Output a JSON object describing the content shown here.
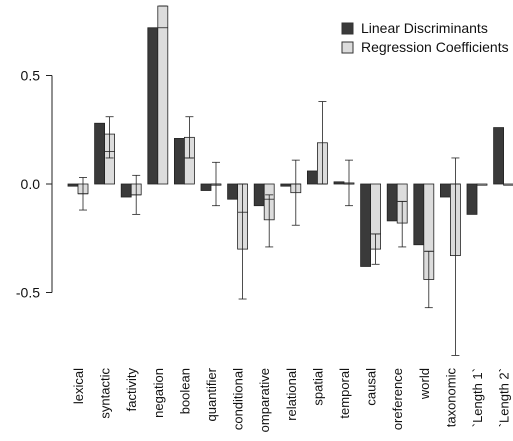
{
  "chart_data": {
    "type": "bar",
    "title": "",
    "xlabel": "",
    "ylabel": "",
    "ylim": [
      -0.82,
      0.82
    ],
    "yticks": [
      0.5,
      0.0,
      -0.5
    ],
    "ytick_labels": [
      "0.5",
      "0.0",
      "-0.5"
    ],
    "grid": false,
    "legend_position": "top-right",
    "categories": [
      "lexical",
      "syntactic",
      "factivity",
      "negation",
      "boolean",
      "quantifier",
      "conditional",
      "omparative",
      "relational",
      "spatial",
      "temporal",
      "causal",
      "oreference",
      "world",
      "taxonomic",
      "`Length 1`",
      "`Length 2`"
    ],
    "series": [
      {
        "name": "Linear Discriminants",
        "color": "#3a3a3a",
        "values": [
          -0.01,
          0.28,
          -0.06,
          0.72,
          0.21,
          -0.03,
          -0.07,
          -0.1,
          -0.01,
          0.06,
          0.01,
          -0.38,
          -0.17,
          -0.28,
          -0.06,
          -0.14,
          0.26
        ]
      },
      {
        "name": "Regression Coefficients",
        "color": "#dcdcdc",
        "values": [
          -0.045,
          0.23,
          -0.05,
          0.82,
          0.215,
          0.0,
          -0.3,
          -0.165,
          -0.04,
          0.19,
          0.005,
          -0.3,
          -0.18,
          -0.44,
          -0.33,
          0.0,
          0.0
        ],
        "centers": [
          -0.045,
          0.15,
          -0.05,
          0.72,
          0.12,
          0.0,
          -0.13,
          -0.07,
          0.0,
          0.0,
          0.0,
          -0.23,
          -0.08,
          -0.31,
          0.0,
          null,
          null
        ],
        "error_low": [
          -0.12,
          0.12,
          -0.14,
          0.82,
          0.12,
          -0.1,
          -0.53,
          -0.29,
          -0.19,
          0.0,
          -0.1,
          -0.37,
          -0.29,
          -0.57,
          -0.79,
          null,
          null
        ],
        "error_high": [
          0.03,
          0.31,
          0.04,
          0.82,
          0.31,
          0.1,
          0.0,
          -0.05,
          0.11,
          0.38,
          0.11,
          -0.23,
          -0.08,
          -0.31,
          0.12,
          null,
          null
        ]
      }
    ]
  }
}
